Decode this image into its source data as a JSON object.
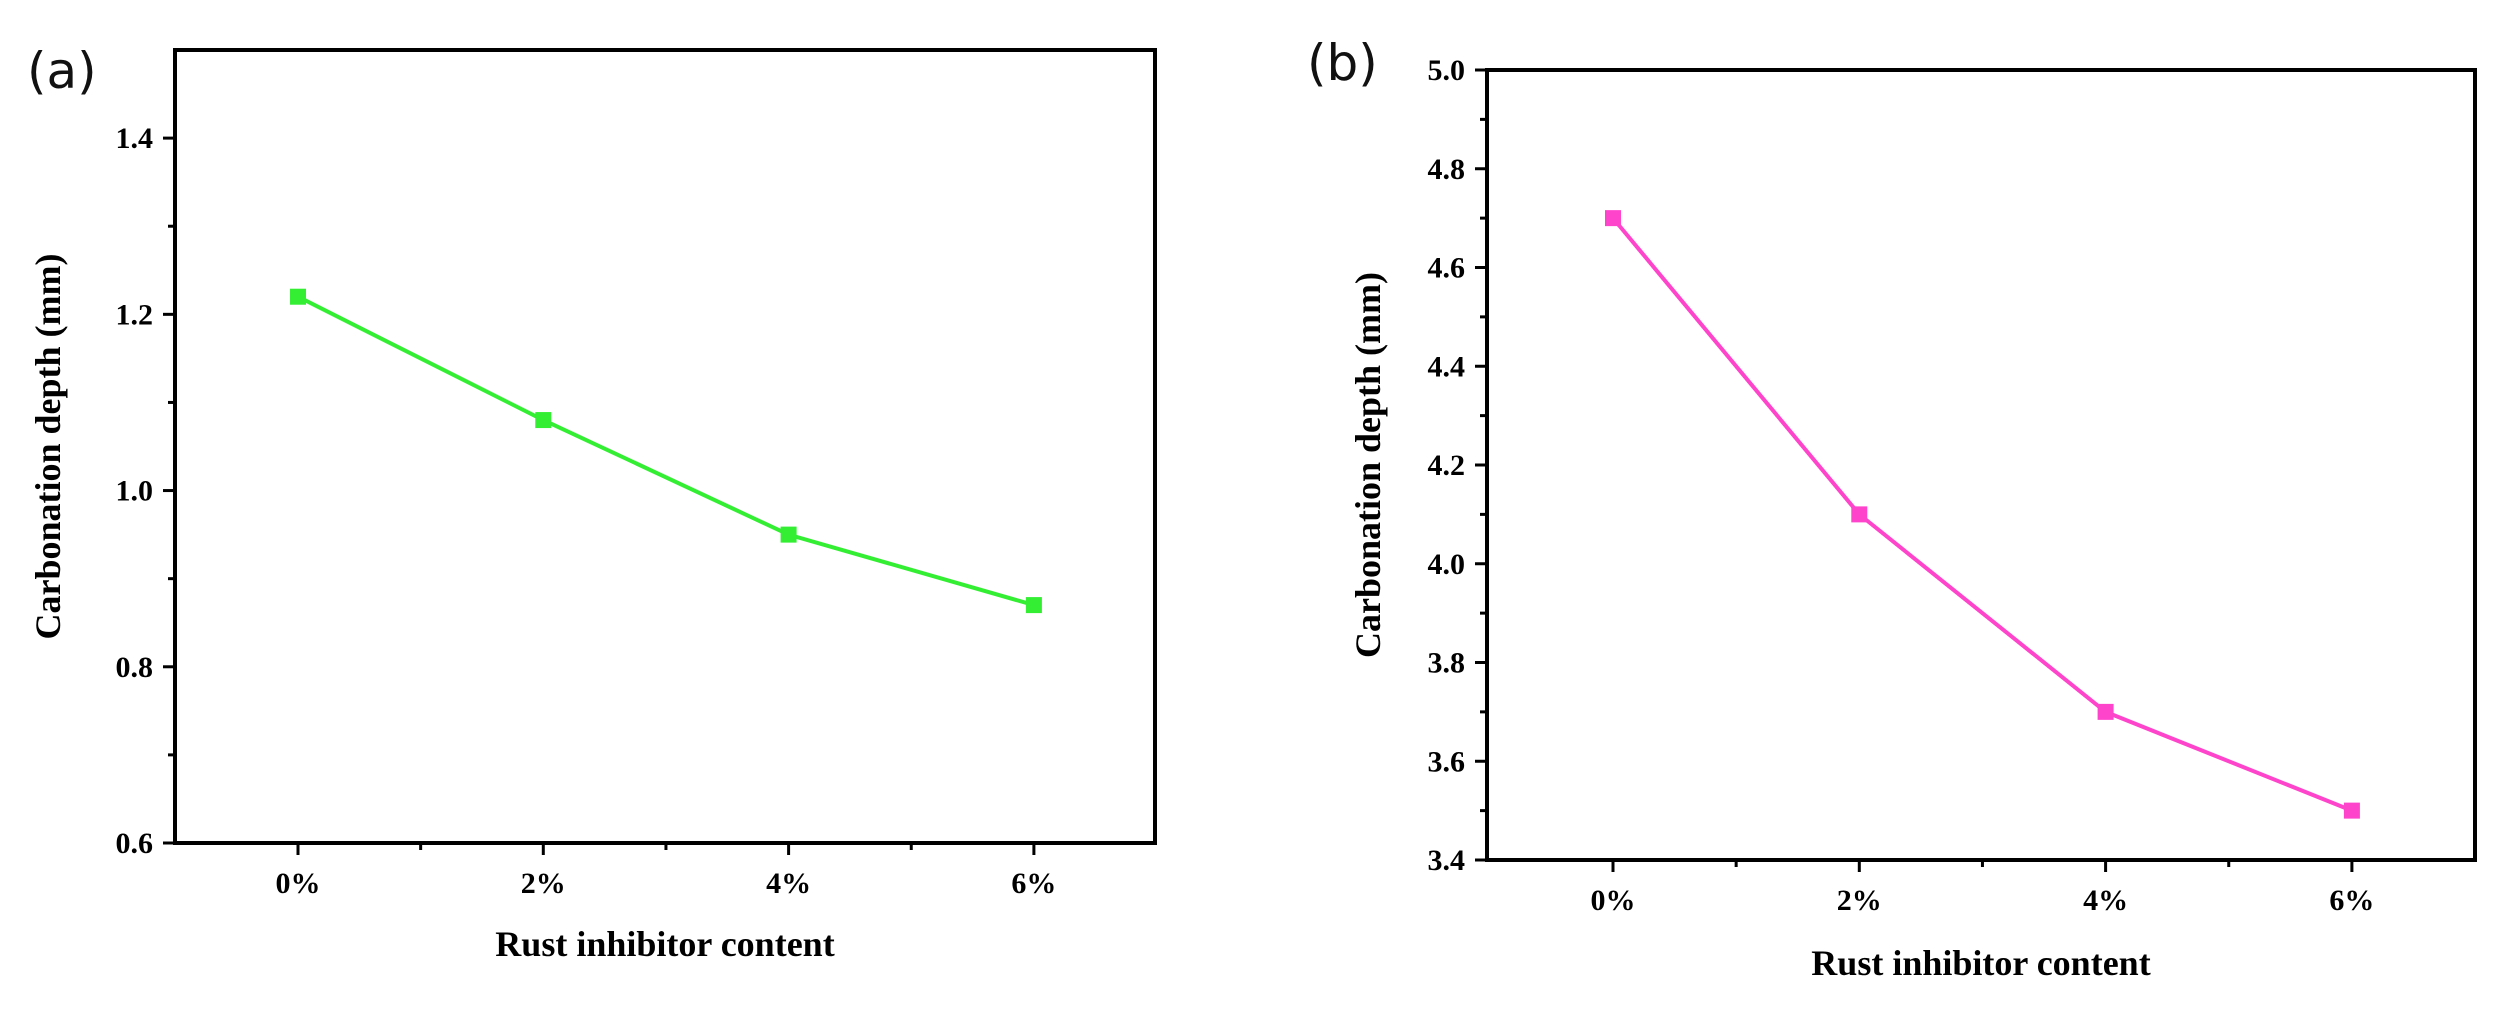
{
  "chart_data": [
    {
      "type": "line",
      "panel_label": "(a)",
      "title": "",
      "xlabel": "Rust inhibitor content",
      "ylabel": "Carbonation depth (mm)",
      "categories": [
        "0%",
        "2%",
        "4%",
        "6%"
      ],
      "series": [
        {
          "name": "Carbonation depth",
          "values": [
            1.22,
            1.08,
            0.95,
            0.87
          ],
          "color": "#33ee33"
        }
      ],
      "ylim": [
        0.6,
        1.5
      ],
      "yticks": [
        0.6,
        0.8,
        1.0,
        1.2,
        1.4
      ],
      "ytick_labels": [
        "0.6",
        "0.8",
        "1.0",
        "1.2",
        "1.4"
      ],
      "grid": false,
      "legend": "none"
    },
    {
      "type": "line",
      "panel_label": "(b)",
      "title": "",
      "xlabel": "Rust inhibitor content",
      "ylabel": "Carbonation depth (mm)",
      "categories": [
        "0%",
        "2%",
        "4%",
        "6%"
      ],
      "series": [
        {
          "name": "Carbonation depth",
          "values": [
            4.7,
            4.1,
            3.7,
            3.5
          ],
          "color": "#ff44cc"
        }
      ],
      "ylim": [
        3.4,
        5.0
      ],
      "yticks": [
        3.4,
        3.6,
        3.8,
        4.0,
        4.2,
        4.4,
        4.6,
        4.8,
        5.0
      ],
      "ytick_labels": [
        "3.4",
        "3.6",
        "3.8",
        "4.0",
        "4.2",
        "4.4",
        "4.6",
        "4.8",
        "5.0"
      ],
      "grid": false,
      "legend": "none"
    }
  ]
}
